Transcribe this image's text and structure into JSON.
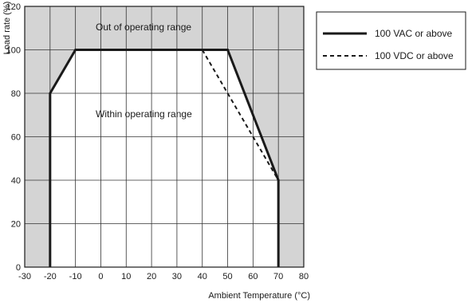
{
  "chart_data": {
    "type": "line",
    "xlabel": "Ambient Temperature (°C)",
    "ylabel": "Load rate (%)",
    "xlim": [
      -30,
      80
    ],
    "ylim": [
      0,
      120
    ],
    "x_ticks": [
      -30,
      -20,
      -10,
      0,
      10,
      20,
      30,
      40,
      50,
      60,
      70,
      80
    ],
    "y_ticks": [
      0,
      20,
      40,
      60,
      80,
      100,
      120
    ],
    "x_tick_labels": [
      "-30",
      "-20",
      "-10",
      "0",
      "10",
      "20",
      "30",
      "40",
      "50",
      "60",
      "70",
      "80"
    ],
    "y_tick_labels": [
      "0",
      "20",
      "40",
      "60",
      "80",
      "100",
      "120"
    ],
    "grid": true,
    "legend_position": "right",
    "series": [
      {
        "name": "100 VAC or above",
        "style": "solid",
        "x": [
          -20,
          -20,
          -10,
          50,
          70,
          70
        ],
        "y": [
          0,
          80,
          100,
          100,
          40,
          0
        ]
      },
      {
        "name": "100 VDC or above",
        "style": "dashed",
        "x": [
          40,
          70
        ],
        "y": [
          100,
          40
        ]
      }
    ],
    "annotations": {
      "outside": "Out of operating range",
      "inside": "Within operating range"
    },
    "colors": {
      "out_of_range_fill": "#d4d4d4",
      "in_range_fill": "#ffffff",
      "line": "#1a1a1a",
      "grid": "#333333"
    }
  }
}
